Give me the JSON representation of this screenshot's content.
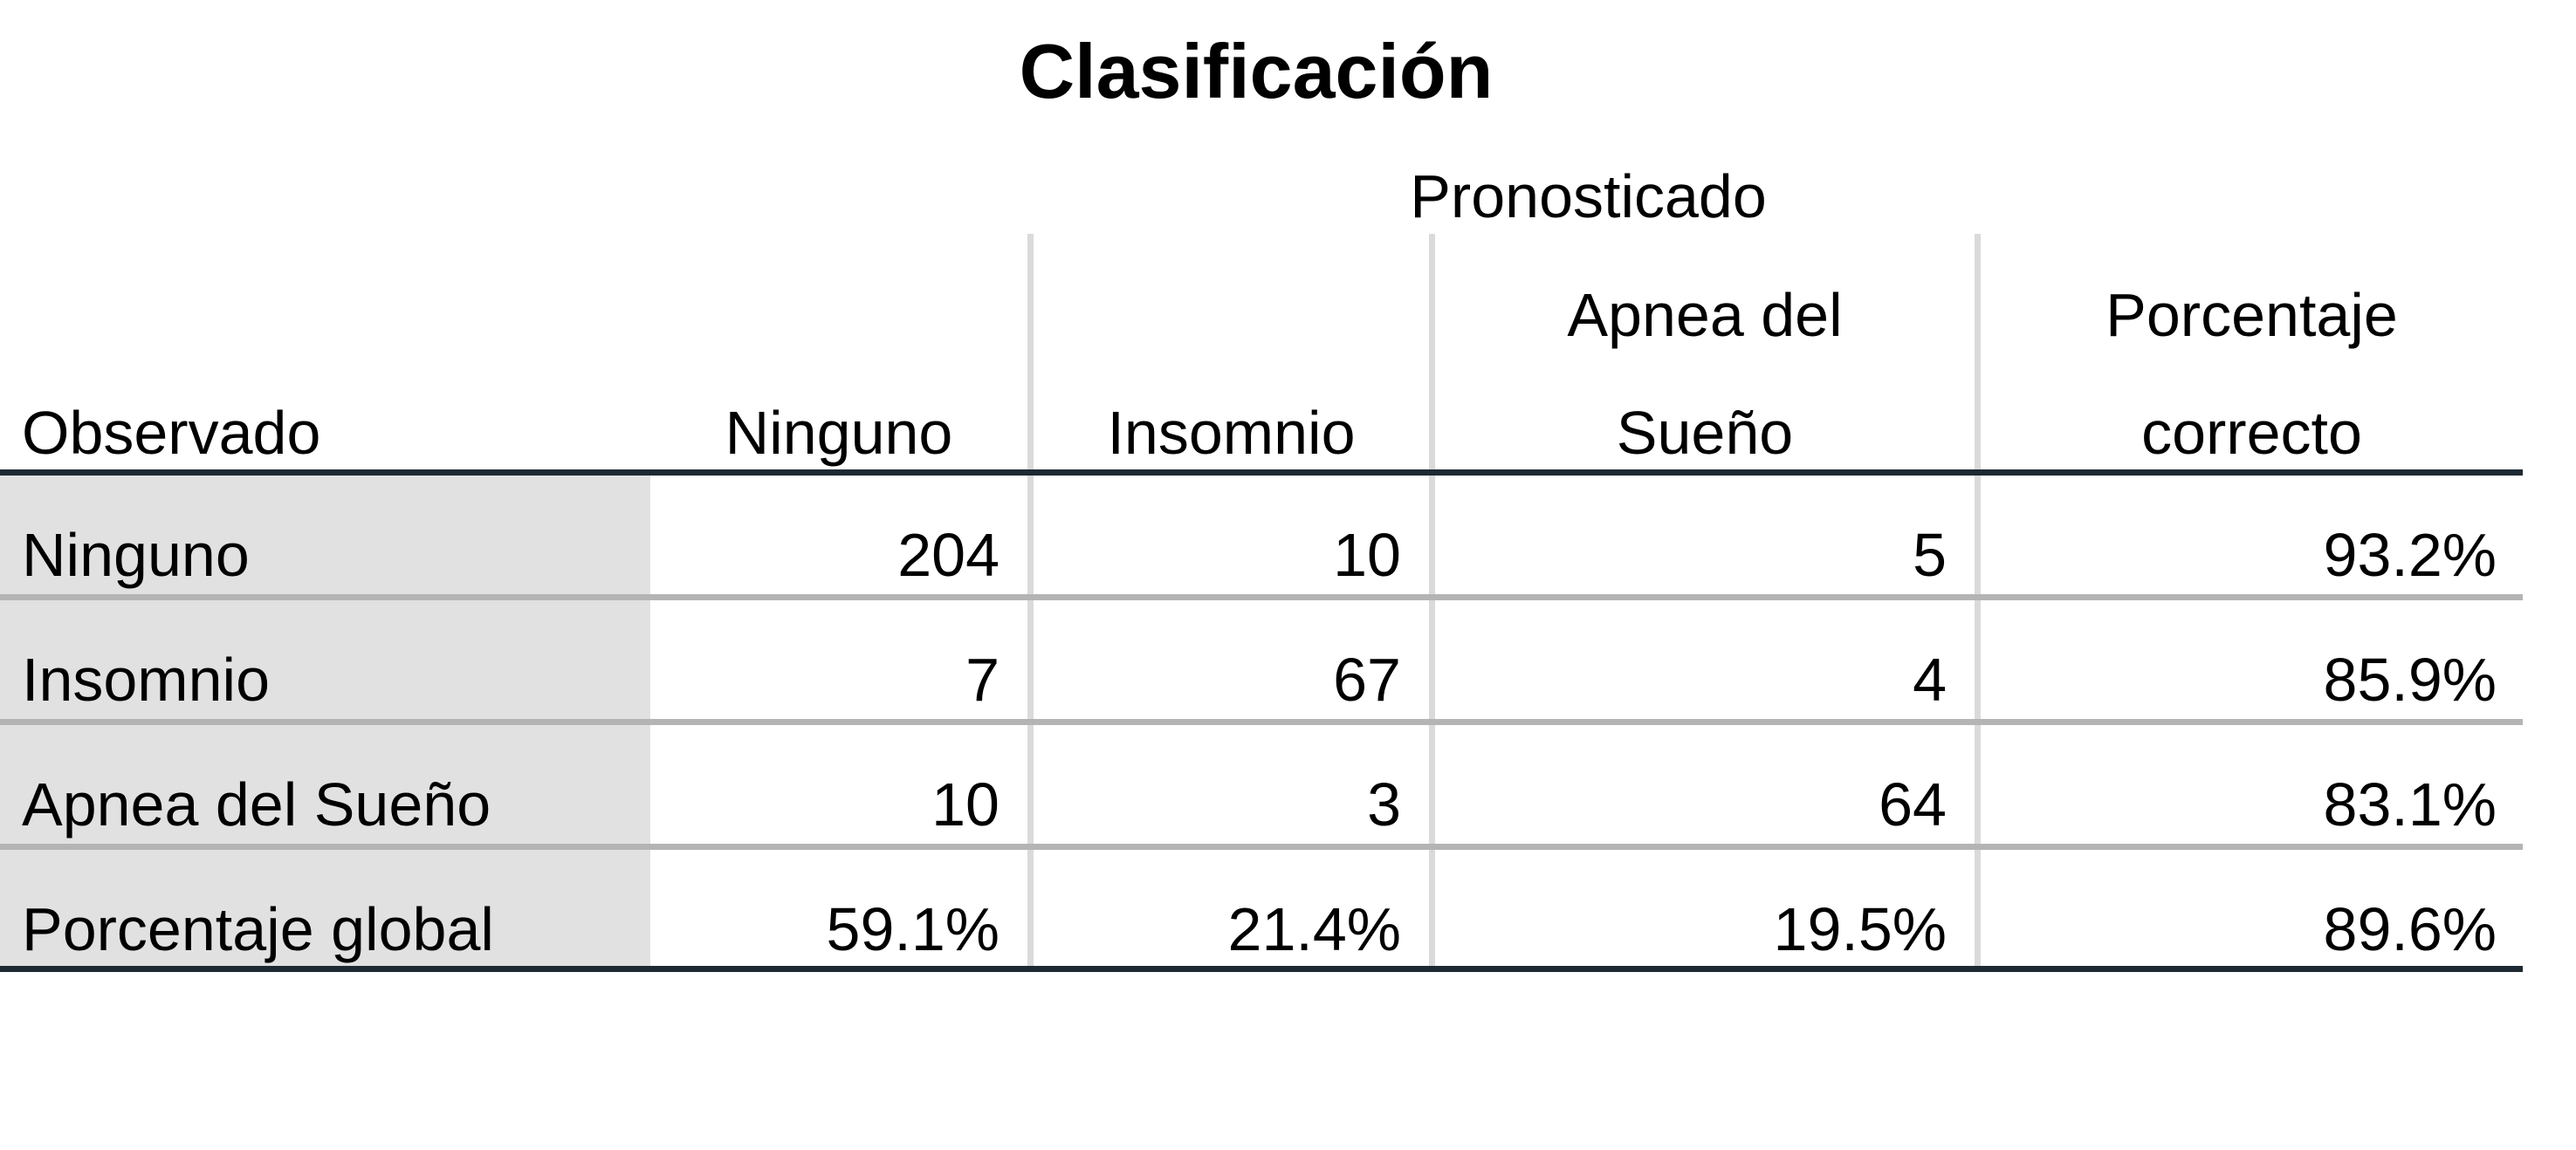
{
  "chart_data": {
    "type": "table",
    "title": "Clasificación",
    "spanner_header": "Pronosticado",
    "row_header": "Observado",
    "columns": [
      {
        "line1": "",
        "line2": "Ninguno"
      },
      {
        "line1": "",
        "line2": "Insomnio"
      },
      {
        "line1": "Apnea del",
        "line2": "Sueño"
      },
      {
        "line1": "Porcentaje",
        "line2": "correcto"
      }
    ],
    "rows": [
      {
        "label": "Ninguno",
        "cells": [
          "204",
          "10",
          "5",
          "93.2%"
        ]
      },
      {
        "label": "Insomnio",
        "cells": [
          "7",
          "67",
          "4",
          "85.9%"
        ]
      },
      {
        "label": "Apnea del Sueño",
        "cells": [
          "10",
          "3",
          "64",
          "83.1%"
        ]
      },
      {
        "label": "Porcentaje global",
        "cells": [
          "59.1%",
          "21.4%",
          "19.5%",
          "89.6%"
        ]
      }
    ]
  }
}
